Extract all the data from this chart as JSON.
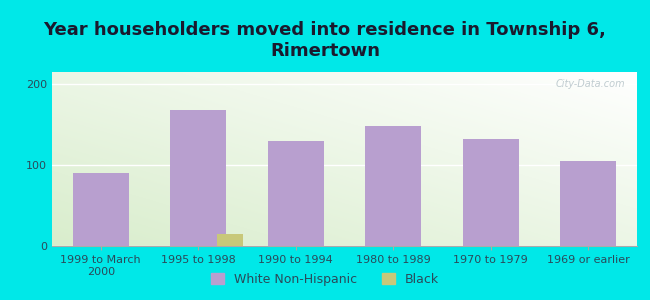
{
  "title": "Year householders moved into residence in Township 6,\nRimertown",
  "categories": [
    "1999 to March\n2000",
    "1995 to 1998",
    "1990 to 1994",
    "1980 to 1989",
    "1970 to 1979",
    "1969 or earlier"
  ],
  "white_values": [
    90,
    168,
    130,
    148,
    132,
    105
  ],
  "black_values": [
    0,
    15,
    0,
    0,
    0,
    0
  ],
  "white_color": "#b89fcf",
  "black_color": "#c8c87a",
  "bg_color": "#00e8e8",
  "ylim": [
    0,
    215
  ],
  "yticks": [
    0,
    100,
    200
  ],
  "bar_width": 0.38,
  "legend_labels": [
    "White Non-Hispanic",
    "Black"
  ],
  "title_fontsize": 13,
  "tick_fontsize": 8,
  "legend_fontsize": 9,
  "watermark": "City-Data.com",
  "title_color": "#1a1a2e",
  "tick_color": "#2a4a5a",
  "grid_color": "#e0e8e0"
}
